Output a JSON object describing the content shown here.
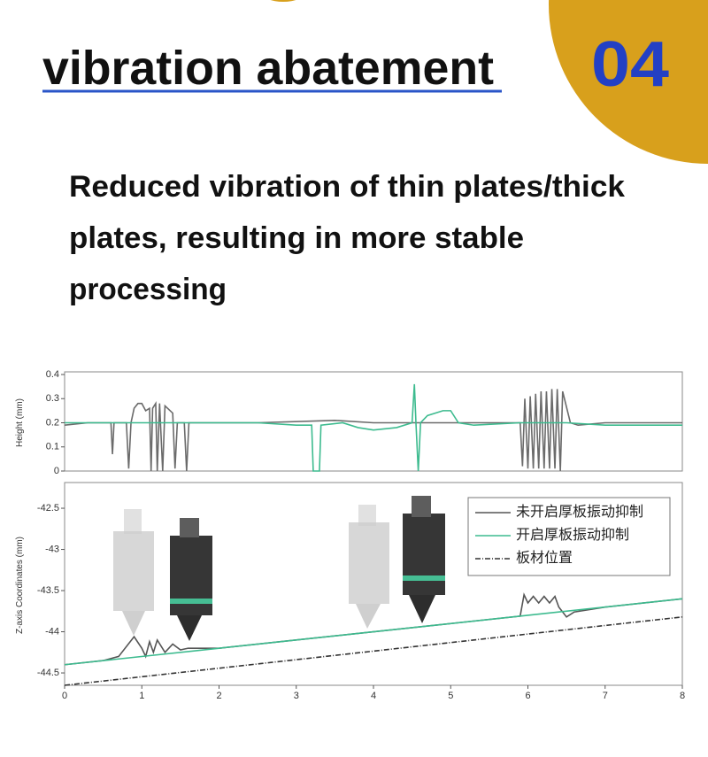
{
  "header": {
    "title": "vibration abatement",
    "number": "04"
  },
  "description": [
    "Reduced vibration of thin plates/thick",
    "plates, resulting in more stable",
    "processing"
  ],
  "chart_data": [
    {
      "type": "line",
      "y_label": "Height (mm)",
      "xlim": [
        0,
        8
      ],
      "ylim": [
        0,
        0.4
      ],
      "yticks": [
        0,
        0.1,
        0.2,
        0.3,
        0.4
      ],
      "series": [
        {
          "color": "#6b6b6b",
          "x": [
            0,
            0.3,
            0.6,
            0.62,
            0.64,
            0.8,
            0.83,
            0.86,
            0.9,
            0.95,
            1.0,
            1.05,
            1.1,
            1.12,
            1.14,
            1.18,
            1.2,
            1.23,
            1.27,
            1.3,
            1.4,
            1.43,
            1.46,
            1.55,
            1.58,
            1.61,
            2.5,
            3.5,
            4.0,
            4.5,
            5.0,
            5.9,
            5.93,
            5.96,
            6.0,
            6.03,
            6.07,
            6.1,
            6.14,
            6.17,
            6.21,
            6.24,
            6.28,
            6.31,
            6.35,
            6.38,
            6.42,
            6.45,
            6.55,
            6.65,
            7,
            8
          ],
          "values": [
            0.19,
            0.2,
            0.2,
            0.07,
            0.2,
            0.2,
            0.01,
            0.2,
            0.26,
            0.28,
            0.28,
            0.25,
            0.26,
            0,
            0.26,
            0.28,
            0,
            0.28,
            0,
            0.27,
            0.24,
            0.01,
            0.2,
            0.2,
            0,
            0.2,
            0.2,
            0.21,
            0.2,
            0.2,
            0.2,
            0.2,
            0.02,
            0.3,
            0.01,
            0.31,
            0.01,
            0.32,
            0.01,
            0.33,
            0.01,
            0.33,
            0.01,
            0.34,
            0.01,
            0.34,
            0,
            0.33,
            0.2,
            0.19,
            0.2,
            0.2
          ]
        },
        {
          "color": "#3dbb8f",
          "x": [
            0,
            0.5,
            1.0,
            1.5,
            2.0,
            2.5,
            3.0,
            3.2,
            3.22,
            3.3,
            3.32,
            3.6,
            3.8,
            4.0,
            4.3,
            4.5,
            4.53,
            4.55,
            4.58,
            4.61,
            4.7,
            4.9,
            5.0,
            5.1,
            5.3,
            5.9,
            6.5,
            7,
            8
          ],
          "values": [
            0.2,
            0.2,
            0.2,
            0.2,
            0.2,
            0.2,
            0.19,
            0.19,
            0,
            0,
            0.19,
            0.2,
            0.18,
            0.17,
            0.18,
            0.2,
            0.36,
            0.2,
            0,
            0.2,
            0.23,
            0.25,
            0.25,
            0.2,
            0.19,
            0.2,
            0.2,
            0.19,
            0.19
          ]
        }
      ]
    },
    {
      "type": "line",
      "y_label": "Z-axis Coordinates (mm)",
      "xlim": [
        0,
        8
      ],
      "ylim": [
        -44.65,
        -42.22
      ],
      "xticks": [
        0,
        1,
        2,
        3,
        4,
        5,
        6,
        7,
        8
      ],
      "yticks": [
        -44.5,
        -44,
        -43.5,
        -43,
        -42.5
      ],
      "legend": "upper right",
      "series": [
        {
          "name": "未开启厚板振动抑制",
          "color": "#555555",
          "style": "solid",
          "x": [
            0,
            0.5,
            0.7,
            0.9,
            1.0,
            1.05,
            1.1,
            1.15,
            1.2,
            1.3,
            1.4,
            1.5,
            1.6,
            2,
            3,
            4,
            5,
            5.9,
            5.95,
            6.0,
            6.07,
            6.14,
            6.21,
            6.28,
            6.35,
            6.4,
            6.5,
            6.6,
            7,
            8
          ],
          "values": [
            -44.4,
            -44.35,
            -44.3,
            -44.06,
            -44.2,
            -44.3,
            -44.12,
            -44.25,
            -44.1,
            -44.25,
            -44.15,
            -44.22,
            -44.2,
            -44.2,
            -44.1,
            -44.0,
            -43.9,
            -43.81,
            -43.55,
            -43.65,
            -43.57,
            -43.65,
            -43.57,
            -43.65,
            -43.57,
            -43.7,
            -43.82,
            -43.76,
            -43.7,
            -43.6
          ]
        },
        {
          "name": "开启厚板振动抑制",
          "color": "#3dbb8f",
          "style": "solid",
          "x": [
            0,
            2,
            4,
            6,
            8
          ],
          "values": [
            -44.4,
            -44.2,
            -44.0,
            -43.8,
            -43.6
          ]
        },
        {
          "name": "板材位置",
          "color": "#333333",
          "style": "dashdot",
          "x": [
            0,
            8
          ],
          "values": [
            -44.65,
            -43.82
          ]
        }
      ]
    }
  ]
}
